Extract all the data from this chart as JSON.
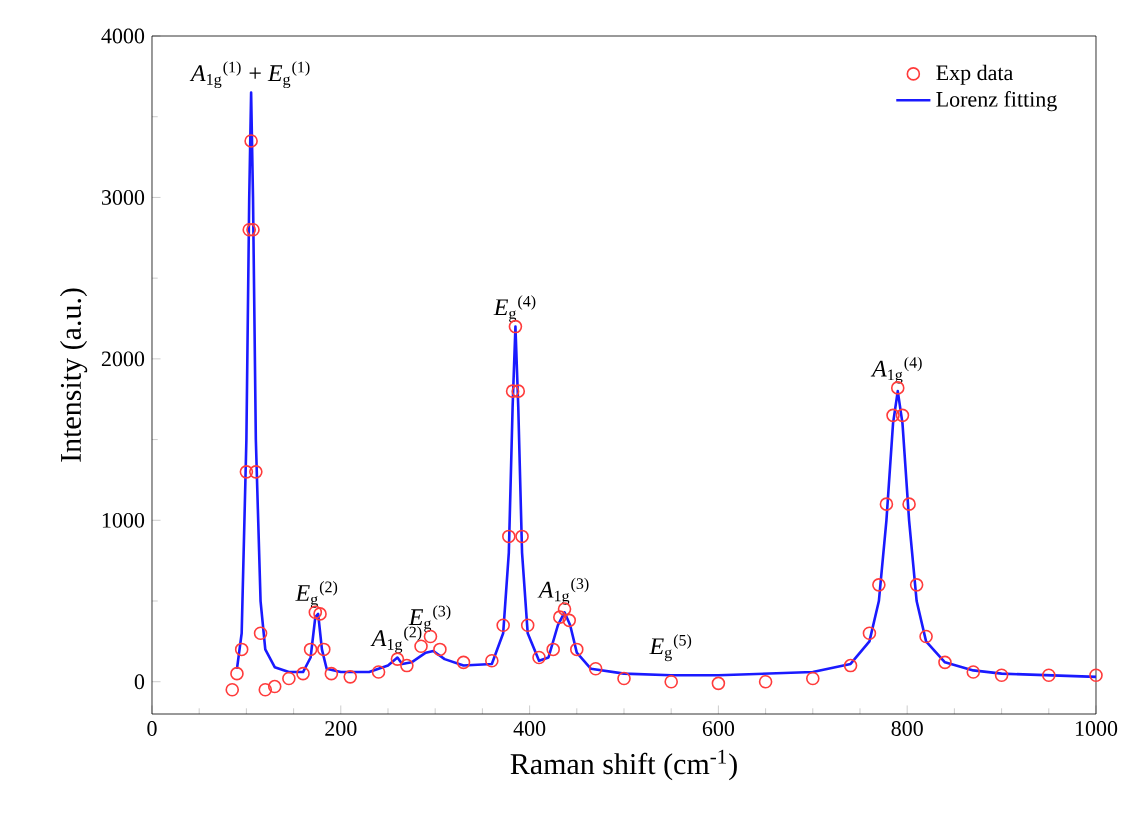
{
  "chart_data": {
    "type": "line",
    "xlabel": "Raman shift (cm$^{-1}$)",
    "ylabel": "Intensity (a.u.)",
    "xlim": [
      0,
      1000
    ],
    "ylim": [
      -200,
      4000
    ],
    "xticks": [
      0,
      200,
      400,
      600,
      800,
      1000
    ],
    "yticks": [
      0,
      1000,
      2000,
      3000,
      4000
    ],
    "legend": "top right",
    "grid": false,
    "series": [
      {
        "name": "Exp data",
        "type": "scatter",
        "marker": "circle",
        "color": "#ff3b3b",
        "x": [
          85,
          90,
          95,
          100,
          103,
          105,
          107,
          110,
          115,
          120,
          130,
          145,
          160,
          168,
          173,
          178,
          182,
          190,
          210,
          240,
          260,
          270,
          285,
          295,
          305,
          330,
          360,
          372,
          378,
          382,
          385,
          388,
          392,
          398,
          410,
          425,
          432,
          437,
          442,
          450,
          470,
          500,
          550,
          600,
          650,
          700,
          740,
          760,
          770,
          778,
          785,
          790,
          795,
          802,
          810,
          820,
          840,
          870,
          900,
          950,
          1000
        ],
        "values": [
          -50,
          50,
          200,
          1300,
          2800,
          3350,
          2800,
          1300,
          300,
          -50,
          -30,
          20,
          50,
          200,
          430,
          420,
          200,
          50,
          30,
          60,
          140,
          100,
          220,
          280,
          200,
          120,
          130,
          350,
          900,
          1800,
          2200,
          1800,
          900,
          350,
          150,
          200,
          400,
          450,
          380,
          200,
          80,
          20,
          0,
          -10,
          0,
          20,
          100,
          300,
          600,
          1100,
          1650,
          1820,
          1650,
          1100,
          600,
          280,
          120,
          60,
          40,
          40,
          40
        ]
      },
      {
        "name": "Lorenz fitting",
        "marker": "none",
        "line_style": "solid",
        "color": "#1a1aff",
        "x": [
          90,
          95,
          100,
          103,
          105,
          107,
          110,
          115,
          120,
          130,
          145,
          160,
          168,
          173,
          176,
          180,
          185,
          200,
          230,
          250,
          260,
          265,
          275,
          290,
          298,
          310,
          330,
          360,
          372,
          378,
          382,
          385,
          388,
          392,
          398,
          410,
          420,
          430,
          437,
          443,
          450,
          465,
          500,
          550,
          600,
          650,
          700,
          740,
          760,
          770,
          778,
          785,
          790,
          795,
          802,
          810,
          820,
          840,
          870,
          900,
          950,
          1000
        ],
        "values": [
          80,
          300,
          1500,
          3000,
          3650,
          3000,
          1500,
          500,
          200,
          90,
          60,
          60,
          150,
          400,
          420,
          200,
          80,
          60,
          60,
          100,
          150,
          110,
          120,
          180,
          190,
          140,
          100,
          110,
          300,
          800,
          1700,
          2200,
          1700,
          800,
          300,
          130,
          150,
          350,
          430,
          350,
          180,
          80,
          50,
          40,
          40,
          50,
          60,
          110,
          250,
          500,
          1000,
          1600,
          1800,
          1600,
          1000,
          500,
          250,
          120,
          70,
          50,
          40,
          30
        ]
      }
    ],
    "annotations": [
      {
        "text": "*A*$_{1g}$$^{(1)}$ + *E*$_{g}$$^{(1)}$",
        "x": 105,
        "y": 3650
      },
      {
        "text": "*E*$_{g}$$^{(2)}$",
        "x": 175,
        "y": 430
      },
      {
        "text": "*A*$_{1g}$$^{(2)}$",
        "x": 260,
        "y": 150
      },
      {
        "text": "*E*$_{g}$$^{(3)}$",
        "x": 295,
        "y": 280
      },
      {
        "text": "*E*$_{g}$$^{(4)}$",
        "x": 385,
        "y": 2200
      },
      {
        "text": "*A*$_{1g}$$^{(3)}$",
        "x": 437,
        "y": 450
      },
      {
        "text": "*E*$_{g}$$^{(5)}$",
        "x": 550,
        "y": 100
      },
      {
        "text": "*A*$_{1g}$$^{(4)}$",
        "x": 790,
        "y": 1820
      }
    ]
  }
}
